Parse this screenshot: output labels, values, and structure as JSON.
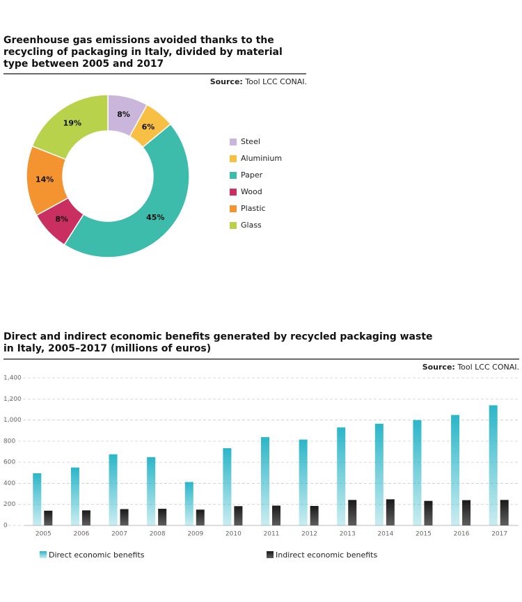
{
  "chart_data": [
    {
      "type": "pie",
      "title": "Greenhouse gas emissions avoided thanks to the recycling of packaging in Italy, divided by material type between 2005 and 2017",
      "source_label": "Source:",
      "source": "Tool LCC CONAI.",
      "categories": [
        "Steel",
        "Aluminium",
        "Paper",
        "Wood",
        "Plastic",
        "Glass"
      ],
      "values": [
        8,
        6,
        45,
        8,
        14,
        19
      ],
      "value_labels": [
        "8%",
        "6%",
        "45%",
        "8%",
        "14%",
        "19%"
      ],
      "colors": [
        "#cbb6db",
        "#f8bf45",
        "#3dbcab",
        "#c93061",
        "#f39431",
        "#b9d24c"
      ],
      "legend": "right"
    },
    {
      "type": "bar",
      "title": "Direct and indirect economic benefits generated by recycled packaging waste in Italy, 2005–2017 (millions of euros)",
      "source_label": "Source:",
      "source": "Tool LCC CONAI.",
      "categories": [
        "2005",
        "2006",
        "2007",
        "2008",
        "2009",
        "2010",
        "2011",
        "2012",
        "2013",
        "2014",
        "2015",
        "2016",
        "2017"
      ],
      "series": [
        {
          "name": "Direct economic benefits",
          "color": "#2bb6c8",
          "values": [
            495,
            550,
            675,
            648,
            412,
            733,
            838,
            815,
            930,
            965,
            1000,
            1048,
            1140
          ]
        },
        {
          "name": "Indirect economic benefits",
          "color": "#1a1a1a",
          "values": [
            140,
            143,
            155,
            158,
            150,
            183,
            188,
            185,
            242,
            248,
            233,
            240,
            242
          ]
        }
      ],
      "ylim": [
        0,
        1400
      ],
      "yticks": [
        0,
        200,
        400,
        600,
        800,
        {
          "value": 1000,
          "label": "1,000"
        },
        {
          "value": 1200,
          "label": "1,200"
        },
        {
          "value": 1400,
          "label": "1,400"
        }
      ],
      "grid": true,
      "legend": "bottom"
    }
  ]
}
